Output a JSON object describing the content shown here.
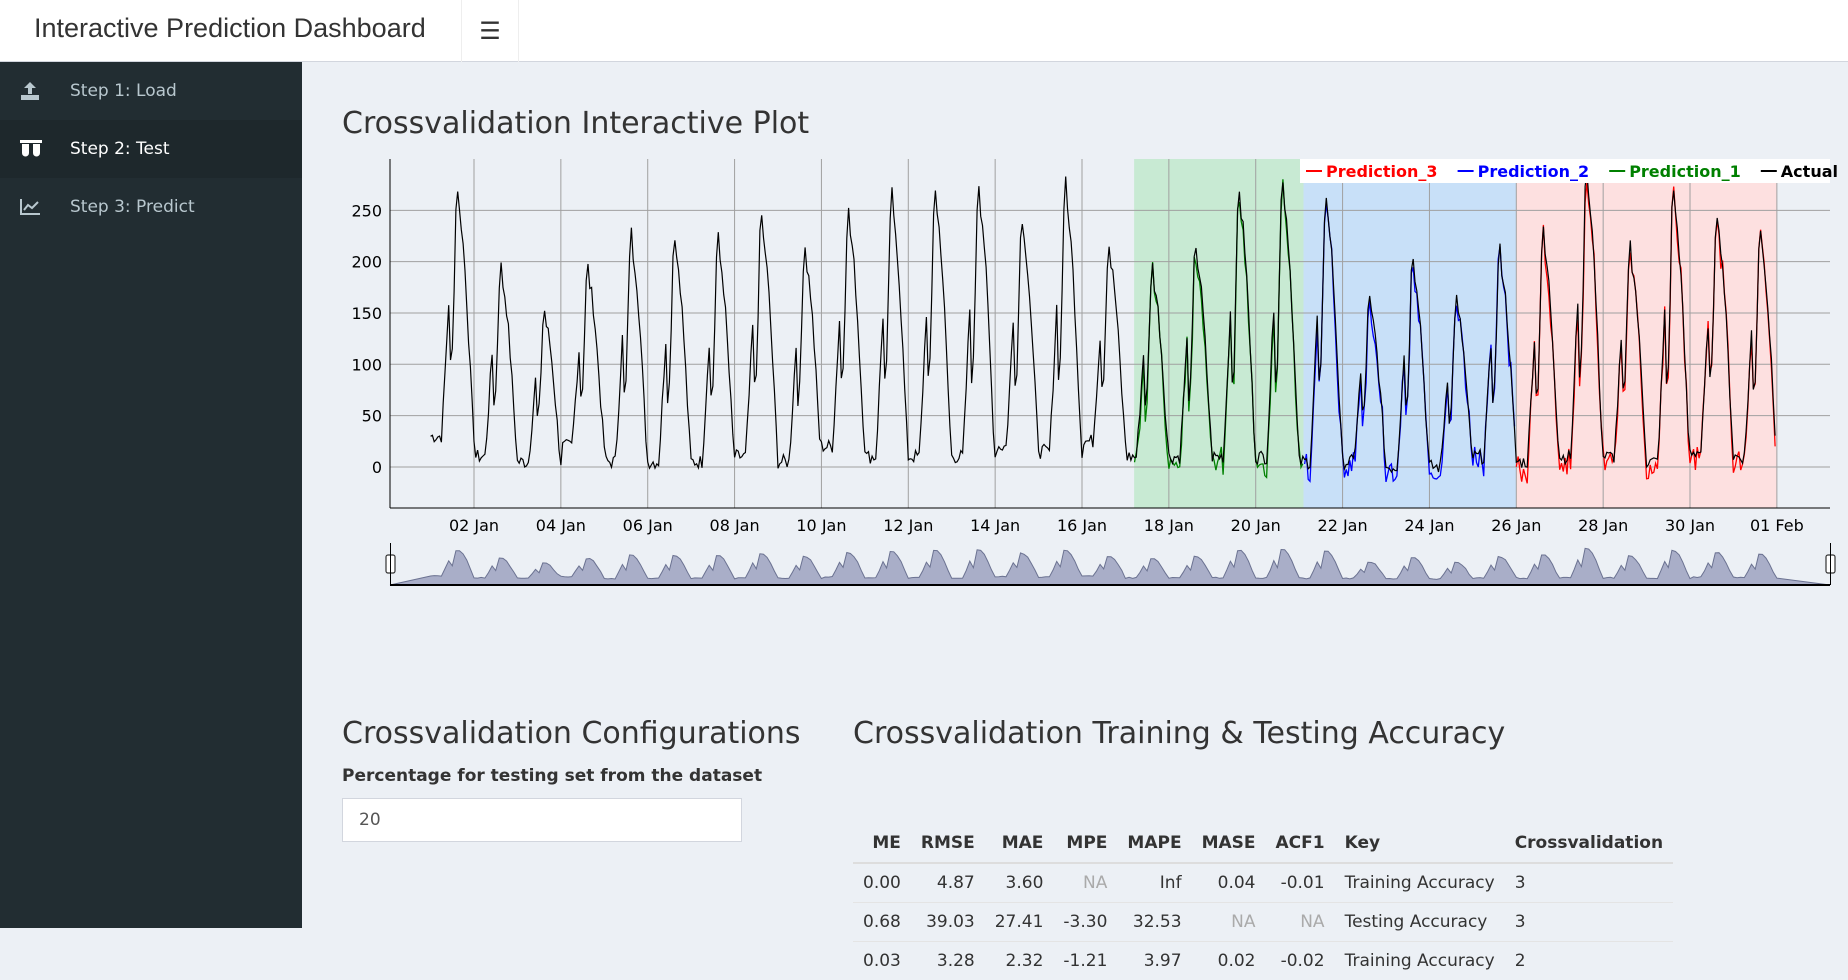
{
  "header": {
    "title": "Interactive Prediction Dashboard",
    "menu_icon": "bars-icon"
  },
  "sidebar": {
    "items": [
      {
        "label": "Step 1: Load",
        "icon": "upload-icon",
        "active": false
      },
      {
        "label": "Step 2: Test",
        "icon": "flask-icon",
        "active": true
      },
      {
        "label": "Step 3: Predict",
        "icon": "line-chart-icon",
        "active": false
      }
    ]
  },
  "plot": {
    "title": "Crossvalidation Interactive Plot"
  },
  "chart_data": {
    "type": "line",
    "title": "",
    "xlabel": "",
    "ylabel": "",
    "ylim": [
      -40,
      300
    ],
    "xlim": [
      "2016-01-01",
      "2016-02-01"
    ],
    "grid": true,
    "legend": "top-right",
    "y_ticks": [
      "0",
      "50",
      "100",
      "150",
      "200",
      "250"
    ],
    "x_ticks": [
      "02 Jan",
      "04 Jan",
      "06 Jan",
      "08 Jan",
      "10 Jan",
      "12 Jan",
      "14 Jan",
      "16 Jan",
      "18 Jan",
      "20 Jan",
      "22 Jan",
      "24 Jan",
      "26 Jan",
      "28 Jan",
      "30 Jan",
      "01 Feb"
    ],
    "daily_peak_actual": [
      252,
      180,
      140,
      180,
      210,
      208,
      205,
      225,
      198,
      230,
      245,
      250,
      255,
      225,
      255,
      200,
      180,
      200,
      250,
      260,
      245,
      150,
      190,
      150,
      195,
      210,
      270,
      200,
      250,
      230,
      215,
      200
    ],
    "daily_trough_actual": [
      30,
      10,
      5,
      20,
      5,
      5,
      5,
      10,
      5,
      20,
      10,
      10,
      10,
      20,
      15,
      25,
      10,
      10,
      10,
      10,
      5,
      5,
      0,
      0,
      10,
      5,
      10,
      10,
      5,
      15,
      10,
      40
    ],
    "series": [
      {
        "name": "Prediction_3",
        "color": "#ff0000",
        "start_day": 25.0,
        "end_day": 31.0
      },
      {
        "name": "Prediction_2",
        "color": "#0000ff",
        "start_day": 20.1,
        "end_day": 25.0
      },
      {
        "name": "Prediction_1",
        "color": "#008000",
        "start_day": 16.2,
        "end_day": 20.1
      },
      {
        "name": "Actual",
        "color": "#000000",
        "start_day": 0.0,
        "end_day": 31.0
      }
    ],
    "shaded_regions": [
      {
        "series": "Prediction_1",
        "color": "#c8ead3",
        "start_day": 16.2,
        "end_day": 20.1
      },
      {
        "series": "Prediction_2",
        "color": "#c8e0f8",
        "start_day": 20.1,
        "end_day": 25.0
      },
      {
        "series": "Prediction_3",
        "color": "#fde0e0",
        "start_day": 25.0,
        "end_day": 31.0
      }
    ],
    "range_selector": true
  },
  "config": {
    "title": "Crossvalidation Configurations",
    "label": "Percentage for testing set from the dataset",
    "value": "20"
  },
  "accuracy": {
    "title": "Crossvalidation Training & Testing Accuracy",
    "columns": [
      "ME",
      "RMSE",
      "MAE",
      "MPE",
      "MAPE",
      "MASE",
      "ACF1",
      "Key",
      "Crossvalidation"
    ],
    "rows": [
      [
        "0.00",
        "4.87",
        "3.60",
        "NA",
        "Inf",
        "0.04",
        "-0.01",
        "Training Accuracy",
        "3"
      ],
      [
        "0.68",
        "39.03",
        "27.41",
        "-3.30",
        "32.53",
        "NA",
        "NA",
        "Testing Accuracy",
        "3"
      ],
      [
        "0.03",
        "3.28",
        "2.32",
        "-1.21",
        "3.97",
        "0.02",
        "-0.02",
        "Training Accuracy",
        "2"
      ]
    ]
  }
}
